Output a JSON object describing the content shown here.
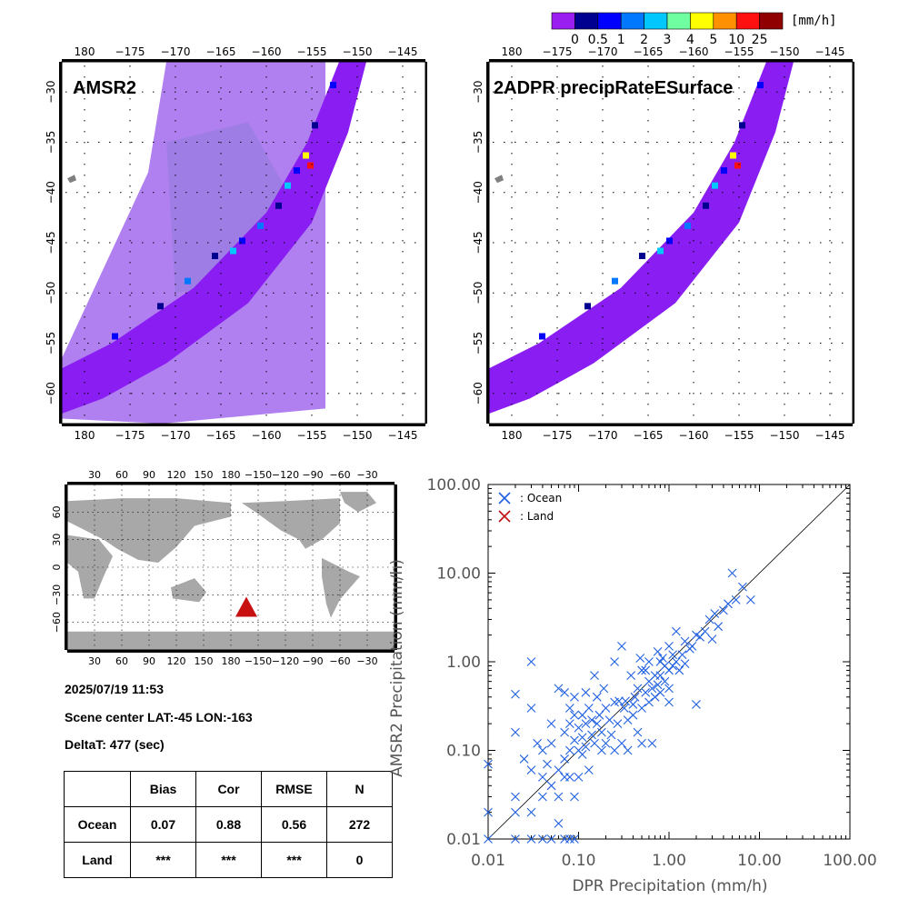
{
  "colorbar": {
    "unit": "[mm/h]",
    "ticks": [
      "0",
      "0.5",
      "1",
      "2",
      "3",
      "4",
      "5",
      "10",
      "25"
    ],
    "colors": [
      "#9a1ef0",
      "#000090",
      "#0000ff",
      "#0078ff",
      "#00c8ff",
      "#70ffa0",
      "#ffff00",
      "#ff9000",
      "#ff1010",
      "#900000"
    ]
  },
  "panels": {
    "amsr2_title": "AMSR2",
    "dpr_title": "2ADPR precipRateESurface",
    "lon_ticks": [
      "180",
      "−175",
      "−170",
      "−165",
      "−160",
      "−155",
      "−150",
      "−145"
    ],
    "lat_ticks": [
      "−30",
      "−35",
      "−40",
      "−45",
      "−50",
      "−55",
      "−60"
    ],
    "lon_range": [
      -182.5,
      -142.5
    ],
    "lat_range": [
      -63,
      -27
    ],
    "background_swath_color": "#b07ff0",
    "swath_color": "#8a1ef2"
  },
  "globe": {
    "top_ticks": [
      "30",
      "60",
      "90",
      "120",
      "150",
      "180",
      "−150",
      "−120",
      "−90",
      "−60",
      "−30"
    ],
    "lat_ticks": [
      "60",
      "30",
      "0",
      "−30",
      "−60"
    ],
    "marker_color": "#c81010",
    "land_color": "#a8a8a8"
  },
  "info": {
    "datetime": "2025/07/19 11:53",
    "scene_center": "Scene center LAT:-45   LON:-163",
    "delta_t": "DeltaT:  477 (sec)"
  },
  "stats": {
    "headers": [
      "",
      "Bias",
      "Cor",
      "RMSE",
      "N"
    ],
    "rows": [
      [
        "Ocean",
        "0.07",
        "0.88",
        "0.56",
        "272"
      ],
      [
        "Land",
        "***",
        "***",
        "***",
        "0"
      ]
    ]
  },
  "chart_data": {
    "type": "scatter",
    "xlabel": "DPR Precipitation (mm/h)",
    "ylabel": "AMSR2 Precipitation (mm/h)",
    "x_scale": "log",
    "y_scale": "log",
    "xlim": [
      0.01,
      100
    ],
    "ylim": [
      0.01,
      100
    ],
    "x_tick_labels": [
      "0.01",
      "0.10",
      "1.00",
      "10.00",
      "100.00"
    ],
    "y_tick_labels": [
      "0.01",
      "0.10",
      "1.00",
      "10.00",
      "100.00"
    ],
    "legend_position": "top-left",
    "series": [
      {
        "name": ": Ocean",
        "color": "#2060e0",
        "points": [
          [
            0.01,
            0.07
          ],
          [
            0.01,
            0.02
          ],
          [
            0.01,
            0.01
          ],
          [
            0.02,
            0.43
          ],
          [
            0.02,
            0.16
          ],
          [
            0.02,
            0.03
          ],
          [
            0.02,
            0.02
          ],
          [
            0.02,
            0.01
          ],
          [
            0.025,
            0.08
          ],
          [
            0.03,
            1.0
          ],
          [
            0.03,
            0.3
          ],
          [
            0.03,
            0.06
          ],
          [
            0.03,
            0.02
          ],
          [
            0.03,
            0.01
          ],
          [
            0.035,
            0.12
          ],
          [
            0.04,
            0.1
          ],
          [
            0.04,
            0.05
          ],
          [
            0.04,
            0.03
          ],
          [
            0.04,
            0.01
          ],
          [
            0.045,
            0.07
          ],
          [
            0.05,
            0.2
          ],
          [
            0.05,
            0.12
          ],
          [
            0.05,
            0.04
          ],
          [
            0.05,
            0.01
          ],
          [
            0.06,
            0.5
          ],
          [
            0.06,
            0.06
          ],
          [
            0.06,
            0.03
          ],
          [
            0.06,
            0.015
          ],
          [
            0.07,
            0.45
          ],
          [
            0.07,
            0.16
          ],
          [
            0.07,
            0.08
          ],
          [
            0.07,
            0.05
          ],
          [
            0.07,
            0.01
          ],
          [
            0.08,
            0.3
          ],
          [
            0.08,
            0.2
          ],
          [
            0.08,
            0.1
          ],
          [
            0.08,
            0.05
          ],
          [
            0.08,
            0.01
          ],
          [
            0.09,
            0.4
          ],
          [
            0.09,
            0.25
          ],
          [
            0.09,
            0.13
          ],
          [
            0.09,
            0.03
          ],
          [
            0.09,
            0.01
          ],
          [
            0.1,
            0.18
          ],
          [
            0.1,
            0.1
          ],
          [
            0.1,
            0.05
          ],
          [
            0.11,
            0.25
          ],
          [
            0.11,
            0.14
          ],
          [
            0.11,
            0.09
          ],
          [
            0.12,
            0.45
          ],
          [
            0.12,
            0.2
          ],
          [
            0.12,
            0.11
          ],
          [
            0.13,
            0.3
          ],
          [
            0.13,
            0.06
          ],
          [
            0.14,
            0.22
          ],
          [
            0.14,
            0.15
          ],
          [
            0.15,
            0.7
          ],
          [
            0.15,
            0.12
          ],
          [
            0.16,
            0.4
          ],
          [
            0.16,
            0.2
          ],
          [
            0.17,
            0.25
          ],
          [
            0.18,
            0.16
          ],
          [
            0.18,
            0.1
          ],
          [
            0.19,
            0.5
          ],
          [
            0.2,
            0.3
          ],
          [
            0.2,
            0.12
          ],
          [
            0.22,
            0.22
          ],
          [
            0.23,
            0.15
          ],
          [
            0.25,
            1.0
          ],
          [
            0.25,
            0.35
          ],
          [
            0.25,
            0.1
          ],
          [
            0.27,
            0.2
          ],
          [
            0.28,
            0.36
          ],
          [
            0.3,
            1.5
          ],
          [
            0.3,
            0.12
          ],
          [
            0.32,
            0.3
          ],
          [
            0.33,
            0.36
          ],
          [
            0.35,
            0.22
          ],
          [
            0.35,
            0.1
          ],
          [
            0.38,
            0.7
          ],
          [
            0.4,
            0.33
          ],
          [
            0.4,
            0.25
          ],
          [
            0.42,
            0.4
          ],
          [
            0.45,
            0.5
          ],
          [
            0.45,
            0.16
          ],
          [
            0.48,
            1.1
          ],
          [
            0.5,
            0.8
          ],
          [
            0.5,
            0.3
          ],
          [
            0.5,
            0.12
          ],
          [
            0.55,
            0.8
          ],
          [
            0.55,
            0.45
          ],
          [
            0.6,
            0.6
          ],
          [
            0.6,
            1.0
          ],
          [
            0.6,
            0.35
          ],
          [
            0.65,
            0.5
          ],
          [
            0.65,
            0.12
          ],
          [
            0.7,
            0.7
          ],
          [
            0.7,
            0.4
          ],
          [
            0.75,
            1.3
          ],
          [
            0.75,
            0.55
          ],
          [
            0.8,
            1.0
          ],
          [
            0.8,
            0.7
          ],
          [
            0.8,
            0.45
          ],
          [
            0.85,
            1.1
          ],
          [
            0.9,
            0.9
          ],
          [
            0.9,
            0.6
          ],
          [
            1.0,
            1.5
          ],
          [
            1.0,
            0.8
          ],
          [
            1.0,
            0.5
          ],
          [
            1.0,
            0.35
          ],
          [
            1.1,
            1.2
          ],
          [
            1.1,
            0.9
          ],
          [
            1.2,
            2.2
          ],
          [
            1.2,
            1.0
          ],
          [
            1.3,
            0.8
          ],
          [
            1.4,
            1.2
          ],
          [
            1.5,
            1.7
          ],
          [
            1.5,
            0.95
          ],
          [
            1.7,
            1.4
          ],
          [
            1.8,
            1.5
          ],
          [
            2.0,
            0.33
          ],
          [
            2.0,
            2.0
          ],
          [
            2.2,
            1.9
          ],
          [
            2.5,
            2.2
          ],
          [
            2.8,
            3.0
          ],
          [
            3.0,
            1.8
          ],
          [
            3.2,
            3.5
          ],
          [
            3.5,
            2.5
          ],
          [
            4.0,
            3.8
          ],
          [
            4.5,
            4.5
          ],
          [
            5.0,
            10.0
          ],
          [
            5.5,
            5.0
          ],
          [
            6.5,
            7.0
          ],
          [
            8.0,
            5.0
          ]
        ]
      },
      {
        "name": ": Land",
        "color": "#c01010",
        "points": []
      }
    ]
  }
}
